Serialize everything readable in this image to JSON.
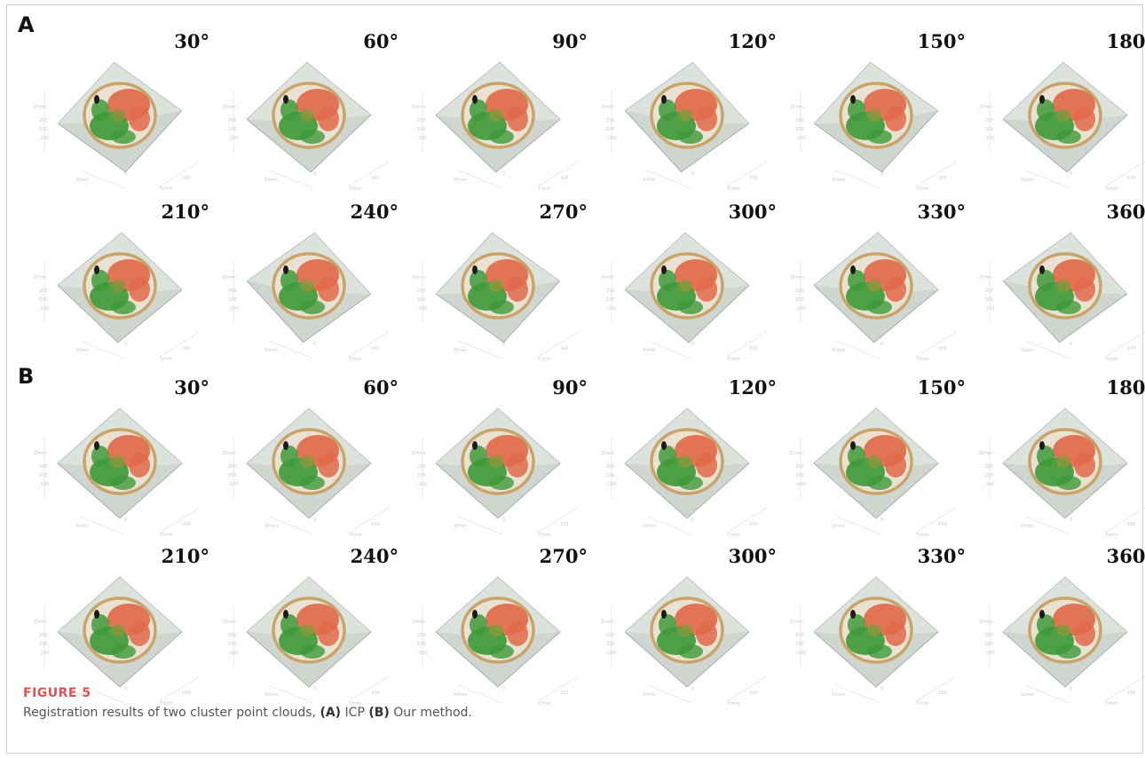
{
  "panels": [
    {
      "label": "A",
      "method": "ICP",
      "rows": [
        [
          "30°",
          "60°",
          "90°",
          "120°",
          "150°",
          "180°"
        ],
        [
          "210°",
          "240°",
          "270°",
          "300°",
          "330°",
          "360°"
        ]
      ]
    },
    {
      "label": "B",
      "method": "Our method",
      "rows": [
        [
          "30°",
          "60°",
          "90°",
          "120°",
          "150°",
          "180°"
        ],
        [
          "210°",
          "240°",
          "270°",
          "300°",
          "330°",
          "360°"
        ]
      ]
    }
  ],
  "caption": {
    "title": "FIGURE 5",
    "text_prefix": "Registration results of two cluster point clouds, ",
    "tag_a": "(A)",
    "name_a": " ICP ",
    "tag_b": "(B)",
    "name_b": " Our method."
  },
  "colors": {
    "plane": "#cfd6d0",
    "rim": "#c9a46a",
    "source_cloud": "#e06a4a",
    "target_cloud": "#3f9a3a",
    "caption_title": "#e0524d"
  }
}
